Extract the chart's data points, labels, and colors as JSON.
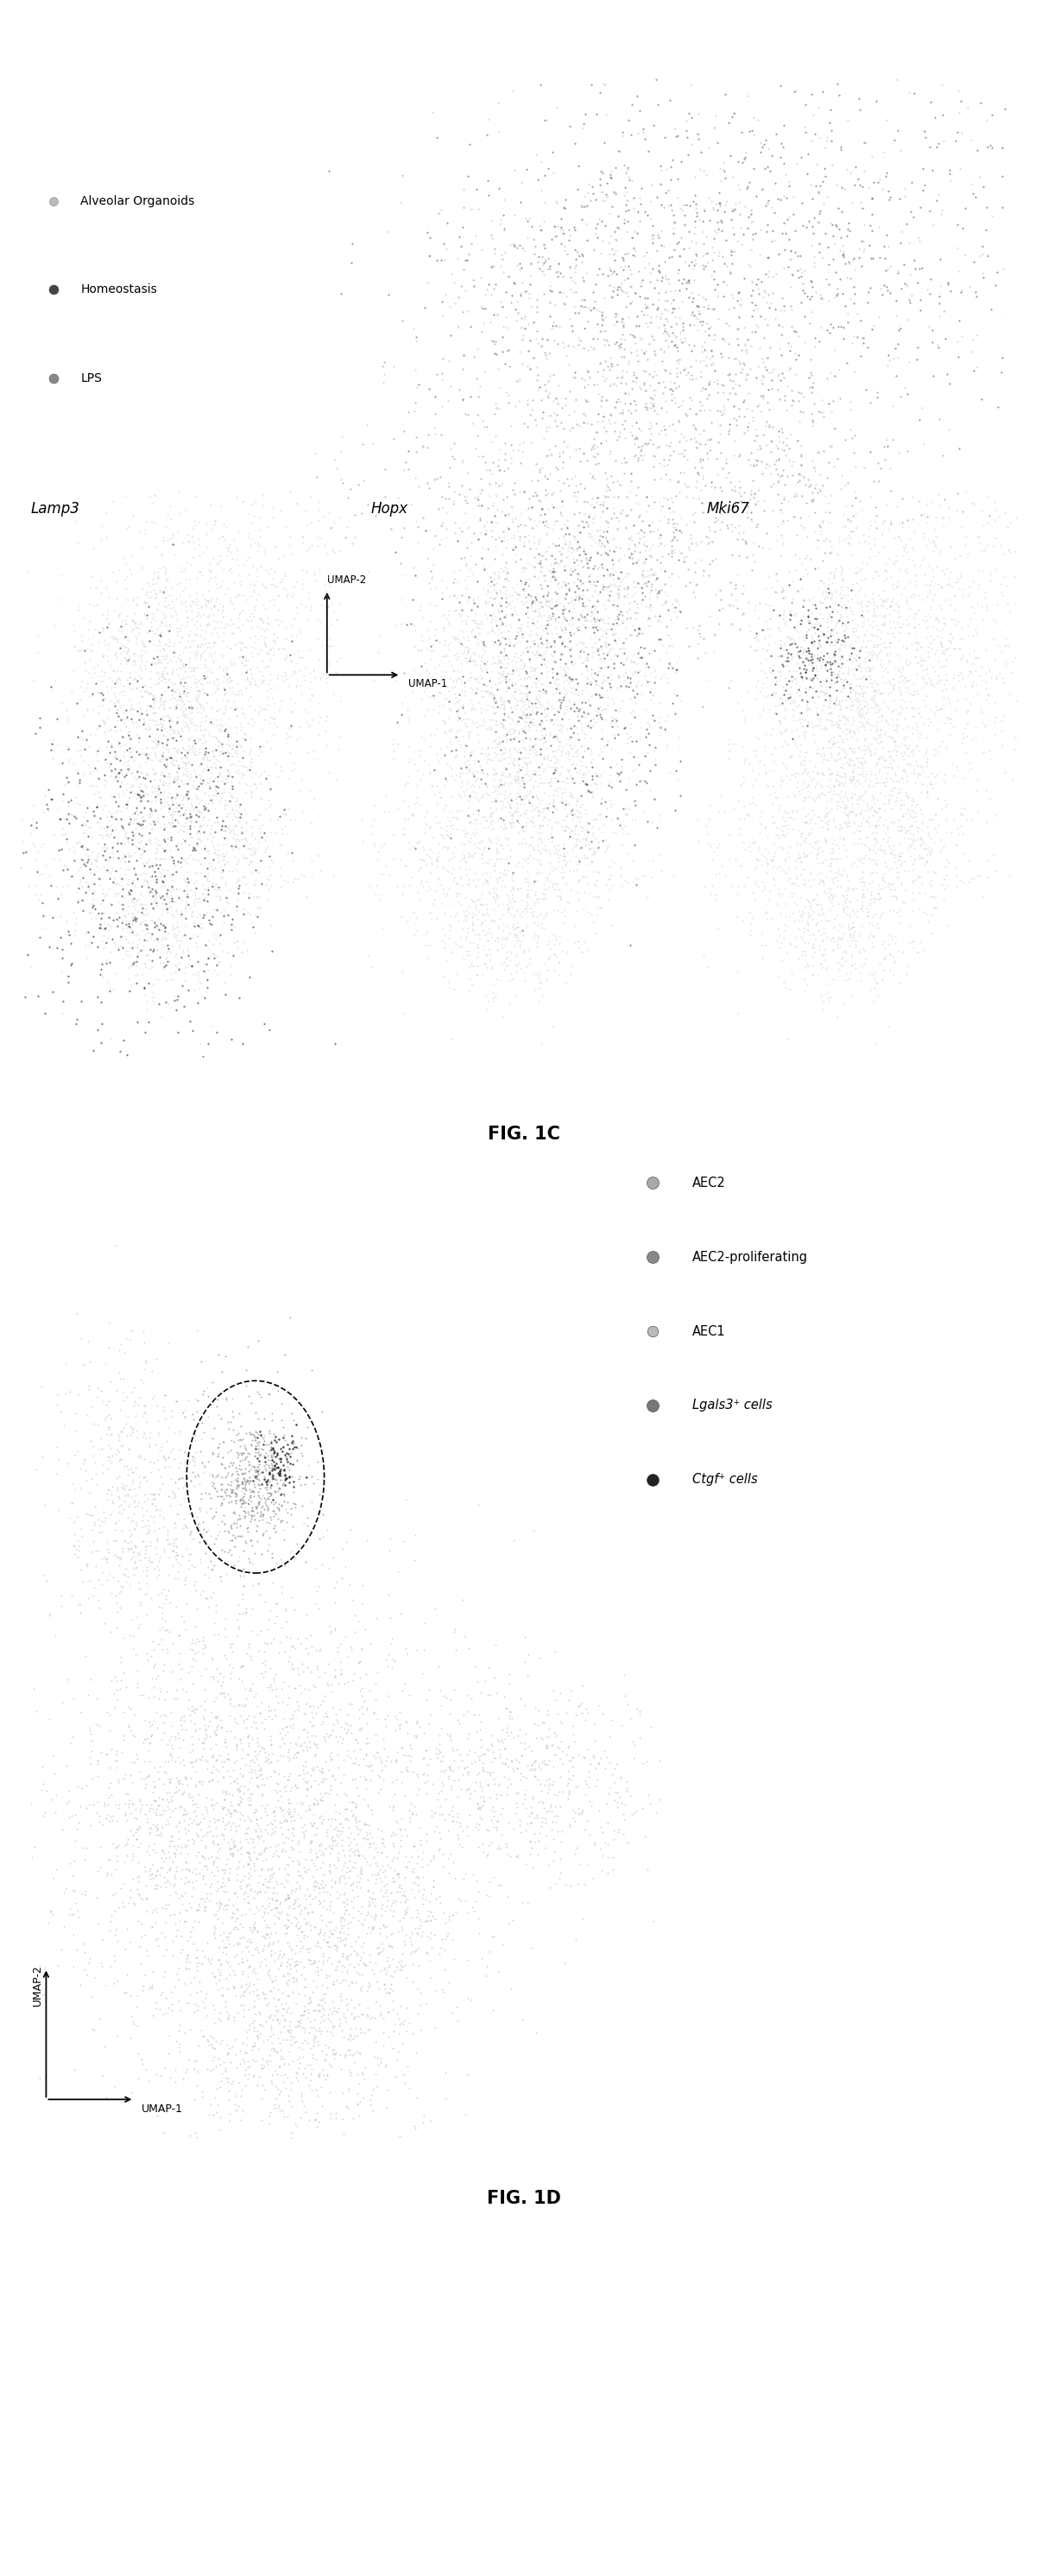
{
  "fig_width": 12.14,
  "fig_height": 29.82,
  "background_color": "#ffffff",
  "panel_1C_title": "FIG. 1C",
  "panel_1D_title": "FIG. 1D",
  "legend_1C": {
    "labels": [
      "Alveolar Organoids",
      "Homeostasis",
      "LPS"
    ],
    "colors": [
      "#bbbbbb",
      "#444444",
      "#888888"
    ]
  },
  "gene_labels": [
    "Lamp3",
    "Hopx",
    "Mki67"
  ],
  "legend_1D": {
    "labels": [
      "AEC2",
      "AEC2-proliferating",
      "AEC1",
      "Lgals3⁺ cells",
      "Ctgf⁺ cells"
    ],
    "colors": [
      "#aaaaaa",
      "#888888",
      "#bbbbbb",
      "#777777",
      "#222222"
    ]
  },
  "umap_1C_xlabel": "UMAP-1",
  "umap_1C_ylabel": "UMAP-2",
  "umap_1D_xlabel": "UMAP-1",
  "umap_1D_ylabel": "UMAP-2"
}
